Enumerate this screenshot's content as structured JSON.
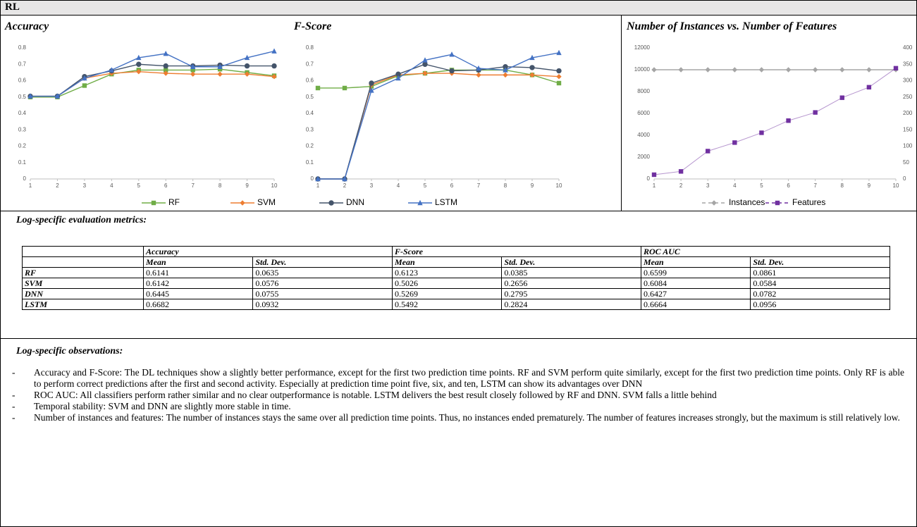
{
  "title": "RL",
  "chart_data": [
    {
      "type": "line",
      "title": "Accuracy",
      "x": [
        1,
        2,
        3,
        4,
        5,
        6,
        7,
        8,
        9,
        10
      ],
      "xlim": [
        1,
        10
      ],
      "xticks": [
        1,
        2,
        3,
        4,
        5,
        6,
        7,
        8,
        9,
        10
      ],
      "ylim": [
        0,
        0.8
      ],
      "yticks": [
        0,
        0.1,
        0.2,
        0.3,
        0.4,
        0.5,
        0.6,
        0.7,
        0.8
      ],
      "legend": "bottom",
      "series": [
        {
          "name": "RF",
          "color": "#70ad47",
          "marker": "square",
          "values": [
            0.5,
            0.5,
            0.57,
            0.64,
            0.665,
            0.665,
            0.665,
            0.67,
            0.65,
            0.63
          ]
        },
        {
          "name": "SVM",
          "color": "#ed7d31",
          "marker": "diamond",
          "values": [
            0.505,
            0.505,
            0.615,
            0.645,
            0.655,
            0.645,
            0.64,
            0.64,
            0.64,
            0.625
          ]
        },
        {
          "name": "DNN",
          "color": "#44546a",
          "marker": "circle",
          "values": [
            0.505,
            0.505,
            0.625,
            0.66,
            0.7,
            0.69,
            0.69,
            0.695,
            0.69,
            0.69
          ]
        },
        {
          "name": "LSTM",
          "color": "#4472c4",
          "marker": "triangle",
          "values": [
            0.505,
            0.505,
            0.615,
            0.665,
            0.74,
            0.765,
            0.685,
            0.685,
            0.74,
            0.78
          ]
        }
      ]
    },
    {
      "type": "line",
      "title": "F-Score",
      "x": [
        1,
        2,
        3,
        4,
        5,
        6,
        7,
        8,
        9,
        10
      ],
      "xlim": [
        1,
        10
      ],
      "xticks": [
        1,
        2,
        3,
        4,
        5,
        6,
        7,
        8,
        9,
        10
      ],
      "ylim": [
        0,
        0.8
      ],
      "yticks": [
        0,
        0.1,
        0.2,
        0.3,
        0.4,
        0.5,
        0.6,
        0.7,
        0.8
      ],
      "series": [
        {
          "name": "RF",
          "color": "#70ad47",
          "marker": "square",
          "values": [
            0.555,
            0.555,
            0.565,
            0.63,
            0.645,
            0.665,
            0.665,
            0.665,
            0.635,
            0.585
          ]
        },
        {
          "name": "SVM",
          "color": "#ed7d31",
          "marker": "diamond",
          "values": [
            0,
            0,
            0.575,
            0.635,
            0.645,
            0.645,
            0.635,
            0.635,
            0.635,
            0.625
          ]
        },
        {
          "name": "DNN",
          "color": "#44546a",
          "marker": "circle",
          "values": [
            0,
            0,
            0.585,
            0.64,
            0.7,
            0.66,
            0.665,
            0.685,
            0.68,
            0.66
          ]
        },
        {
          "name": "LSTM",
          "color": "#4472c4",
          "marker": "triangle",
          "values": [
            0,
            0,
            0.54,
            0.615,
            0.725,
            0.76,
            0.675,
            0.665,
            0.74,
            0.77
          ]
        }
      ]
    },
    {
      "type": "line",
      "title": "Number of Instances vs. Number of Features",
      "x": [
        1,
        2,
        3,
        4,
        5,
        6,
        7,
        8,
        9,
        10
      ],
      "xlim": [
        1,
        10
      ],
      "xticks": [
        1,
        2,
        3,
        4,
        5,
        6,
        7,
        8,
        9,
        10
      ],
      "ylim": [
        0,
        12000
      ],
      "yticks": [
        0,
        2000,
        4000,
        6000,
        8000,
        10000,
        12000
      ],
      "y2lim": [
        0,
        400
      ],
      "y2ticks": [
        0,
        50,
        100,
        150,
        200,
        250,
        300,
        350,
        400
      ],
      "legend": "bottom",
      "series": [
        {
          "name": "Instances",
          "color": "#a5a5a5",
          "marker": "diamond",
          "values": [
            10000,
            10000,
            10000,
            10000,
            10000,
            10000,
            10000,
            10000,
            10000,
            10000
          ]
        },
        {
          "name": "Features",
          "color": "#7030a0",
          "marker": "square",
          "axis": "y2",
          "values": [
            13,
            23,
            85,
            111,
            141,
            178,
            203,
            248,
            280,
            338
          ]
        }
      ]
    }
  ],
  "metrics": {
    "title": "Log-specific evaluation metrics:",
    "groups": [
      "Accuracy",
      "F-Score",
      "ROC AUC"
    ],
    "subheaders": [
      "Mean",
      "Std. Dev.",
      "Mean",
      "Std. Dev.",
      "Mean",
      "Std. Dev."
    ],
    "rows": [
      {
        "name": "RF",
        "values": [
          "0.6141",
          "0.0635",
          "0.6123",
          "0.0385",
          "0.6599",
          "0.0861"
        ]
      },
      {
        "name": "SVM",
        "values": [
          "0.6142",
          "0.0576",
          "0.5026",
          "0.2656",
          "0.6084",
          "0.0584"
        ]
      },
      {
        "name": "DNN",
        "values": [
          "0.6445",
          "0.0755",
          "0.5269",
          "0.2795",
          "0.6427",
          "0.0782"
        ]
      },
      {
        "name": "LSTM",
        "values": [
          "0.6682",
          "0.0932",
          "0.5492",
          "0.2824",
          "0.6664",
          "0.0956"
        ]
      }
    ]
  },
  "observations": {
    "title": "Log-specific observations:",
    "items": [
      "Accuracy and F-Score: The DL techniques show a slightly better performance, except for the first two prediction time points. RF and SVM perform quite similarly, except for the first two prediction time points. Only RF is able to perform correct predictions after the first and second activity. Especially at prediction time point five, six, and ten, LSTM can show its advantages over DNN",
      "ROC AUC: All classifiers perform rather similar and no clear outperformance is notable. LSTM delivers the best result closely followed by RF and DNN. SVM falls a little behind",
      "Temporal stability: SVM and DNN are slightly more stable in time.",
      "Number of instances and features: The number of instances stays the same over all prediction time points. Thus, no instances ended prematurely. The number of features increases strongly, but the maximum is still relatively low."
    ]
  }
}
